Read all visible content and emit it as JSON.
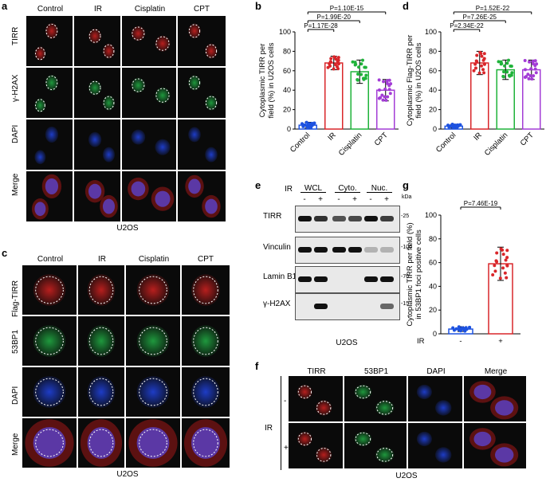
{
  "colors": {
    "red": "#d9262a",
    "green": "#1fb33a",
    "purple": "#a33cd6",
    "blue": "#1d52e0",
    "tileBg": "#0a0a0a",
    "accent_red": "#e02020"
  },
  "panel_letters": [
    "a",
    "b",
    "c",
    "d",
    "e",
    "f",
    "g"
  ],
  "panel_a": {
    "columns": [
      "Control",
      "IR",
      "Cisplatin",
      "CPT"
    ],
    "rows": [
      "TIRR",
      "γ-H2AX",
      "DAPI",
      "Merge"
    ],
    "caption": "U2OS"
  },
  "panel_c": {
    "columns": [
      "Control",
      "IR",
      "Cisplatin",
      "CPT"
    ],
    "rows": [
      "Flag-TIRR",
      "53BP1",
      "DAPI",
      "Merge"
    ],
    "caption": "U2OS"
  },
  "panel_e": {
    "ir_label": "IR",
    "groups": [
      "WCL",
      "Cyto.",
      "Nuc."
    ],
    "lanes": [
      "-",
      "+",
      "-",
      "+",
      "-",
      "+"
    ],
    "kda_label": "kDa",
    "blots": [
      {
        "name": "TIRR",
        "marker": "25"
      },
      {
        "name": "Vinculin",
        "marker": "100"
      },
      {
        "name": "Lamin B1",
        "marker": "70"
      },
      {
        "name": "γ-H2AX",
        "marker": "15"
      }
    ],
    "caption": "U2OS"
  },
  "panel_f": {
    "columns": [
      "TIRR",
      "53BP1",
      "DAPI",
      "Merge"
    ],
    "ir_label": "IR",
    "rows": [
      "-",
      "+"
    ],
    "caption": "U2OS"
  },
  "chart_data": [
    {
      "id": "b",
      "type": "bar",
      "ylabel": "Cytoplasmic TIRR per field (%) in U2OS cells",
      "categories": [
        "Control",
        "IR",
        "Cisplatin",
        "CPT"
      ],
      "values": [
        4,
        68,
        59,
        40
      ],
      "errors": [
        3,
        7,
        12,
        11
      ],
      "ylim": [
        0,
        100
      ],
      "yticks": [
        0,
        20,
        40,
        60,
        80,
        100
      ],
      "annotations": [
        "P=1.10E-15",
        "P=1.99E-20",
        "P=1.17E-28"
      ]
    },
    {
      "id": "d",
      "type": "bar",
      "ylabel": "Cytoplasmic Flag-TIRR per field (%) in U2OS cells",
      "categories": [
        "Control",
        "IR",
        "Cisplatin",
        "CPT"
      ],
      "values": [
        3,
        68,
        61,
        61
      ],
      "errors": [
        2,
        12,
        10,
        10
      ],
      "ylim": [
        0,
        100
      ],
      "yticks": [
        0,
        20,
        40,
        60,
        80,
        100
      ],
      "annotations": [
        "P=1.52E-22",
        "P=7.26E-25",
        "P=2.34E-22"
      ]
    },
    {
      "id": "g",
      "type": "bar",
      "ylabel": "Cytoplasmic TIRR per field (%) in 53BP1 foci positive cells",
      "xlabel": "IR",
      "categories": [
        "-",
        "+"
      ],
      "values": [
        4,
        59
      ],
      "errors": [
        2,
        14
      ],
      "ylim": [
        0,
        100
      ],
      "yticks": [
        0,
        20,
        40,
        60,
        80,
        100
      ],
      "annotations": [
        "P=7.46E-19"
      ]
    }
  ]
}
